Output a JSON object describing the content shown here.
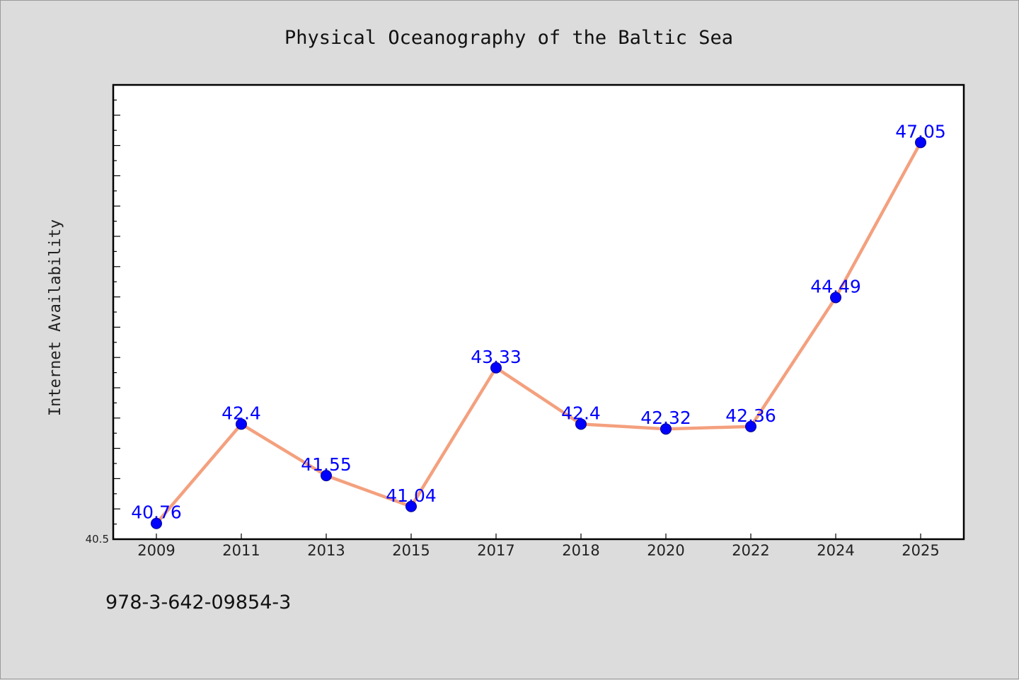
{
  "chart_data": {
    "type": "line",
    "title": "Physical Oceanography of the Baltic Sea",
    "xlabel": "",
    "ylabel": "Internet Availability",
    "categories": [
      "2009",
      "2011",
      "2013",
      "2015",
      "2017",
      "2018",
      "2020",
      "2022",
      "2024",
      "2025"
    ],
    "series": [
      {
        "values": [
          40.76,
          42.4,
          41.55,
          41.04,
          43.33,
          42.4,
          42.32,
          42.36,
          44.49,
          47.05
        ],
        "data_labels": [
          "40.76",
          "42.4",
          "41.55",
          "41.04",
          "43.33",
          "42.4",
          "42.32",
          "42.36",
          "44.49",
          "47.05"
        ]
      }
    ],
    "ylim": [
      40.5,
      48.0
    ],
    "y_tick_labels": [
      "40.5"
    ],
    "grid": false,
    "legend": "none",
    "line_color": "#f4a07e",
    "marker_color": "#0000ff",
    "label_color": "#0000ff"
  },
  "footer": {
    "identifier": "978-3-642-09854-3"
  }
}
